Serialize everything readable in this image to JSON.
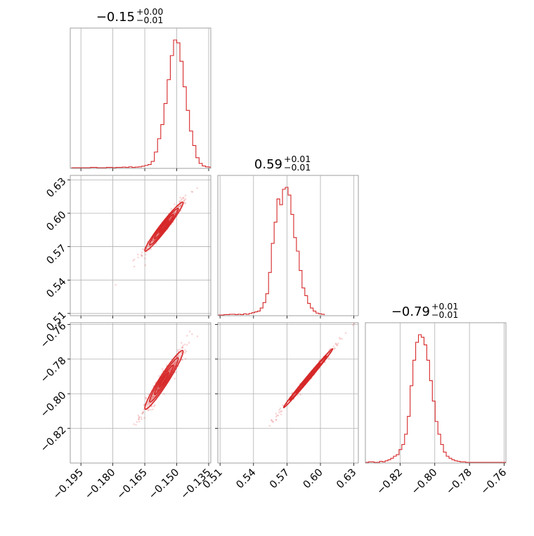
{
  "chart_data": {
    "type": "corner",
    "color": "#d62728",
    "parameters": [
      {
        "title_main": "−0.15",
        "title_plus": "+0.00",
        "title_minus": "−0.01",
        "range": [
          -0.2,
          -0.134
        ],
        "ticks": [
          -0.195,
          -0.18,
          -0.165,
          -0.15,
          -0.135
        ],
        "tick_labels": [
          "−0.195",
          "−0.180",
          "−0.165",
          "−0.150",
          "−0.135"
        ]
      },
      {
        "title_main": "0.59",
        "title_plus": "+0.01",
        "title_minus": "−0.01",
        "range": [
          0.508,
          0.634
        ],
        "ticks": [
          0.51,
          0.54,
          0.57,
          0.6,
          0.63
        ],
        "tick_labels": [
          "0.51",
          "0.54",
          "0.57",
          "0.60",
          "0.63"
        ]
      },
      {
        "title_main": "−0.79",
        "title_plus": "+0.01",
        "title_minus": "−0.01",
        "range": [
          -0.84,
          -0.759
        ],
        "ticks": [
          -0.82,
          -0.8,
          -0.78,
          -0.76
        ],
        "tick_labels": [
          "−0.82",
          "−0.80",
          "−0.78",
          "−0.76"
        ]
      }
    ],
    "histograms": [
      {
        "param": 0,
        "edges_start": -0.1995,
        "bin_width": 0.0015,
        "counts": [
          0,
          0,
          0,
          0,
          0,
          0,
          1,
          1,
          0,
          0,
          0,
          1,
          1,
          0,
          1,
          1,
          2,
          1,
          3,
          1,
          2,
          3,
          5,
          8,
          11,
          22,
          55,
          102,
          152,
          226,
          310,
          395,
          450,
          440,
          375,
          285,
          202,
          129,
          78,
          35,
          15,
          6,
          3,
          2
        ]
      },
      {
        "param": 1,
        "edges_start": 0.5085,
        "bin_width": 0.0025,
        "counts": [
          0,
          0,
          1,
          1,
          2,
          2,
          1,
          2,
          1,
          3,
          2,
          4,
          6,
          8,
          10,
          18,
          32,
          55,
          110,
          185,
          240,
          300,
          285,
          325,
          330,
          310,
          260,
          200,
          165,
          115,
          70,
          50,
          30,
          18,
          10,
          5,
          3,
          2
        ]
      },
      {
        "param": 2,
        "edges_start": -0.8398,
        "bin_width": 0.0016,
        "counts": [
          0,
          1,
          1,
          0,
          0,
          2,
          1,
          3,
          5,
          8,
          12,
          15,
          25,
          35,
          55,
          90,
          150,
          200,
          235,
          250,
          245,
          230,
          200,
          160,
          120,
          80,
          55,
          35,
          20,
          12,
          8,
          5,
          3,
          2,
          1,
          1,
          0,
          0,
          0,
          0,
          0,
          0,
          0,
          0,
          0,
          0,
          0,
          0,
          0,
          0,
          0
        ]
      }
    ],
    "scatter_pairs": [
      {
        "x_param": 0,
        "y_param": 1,
        "center": [
          -0.156,
          0.588
        ],
        "sigma": [
          0.0045,
          0.011
        ],
        "correlation": 0.97
      },
      {
        "x_param": 0,
        "y_param": 2,
        "center": [
          -0.156,
          -0.792
        ],
        "sigma": [
          0.0045,
          0.0085
        ],
        "correlation": 0.96
      },
      {
        "x_param": 1,
        "y_param": 2,
        "center": [
          0.589,
          -0.791
        ],
        "sigma": [
          0.011,
          0.0085
        ],
        "correlation": 0.995
      }
    ],
    "grid": true,
    "legend": "none"
  }
}
